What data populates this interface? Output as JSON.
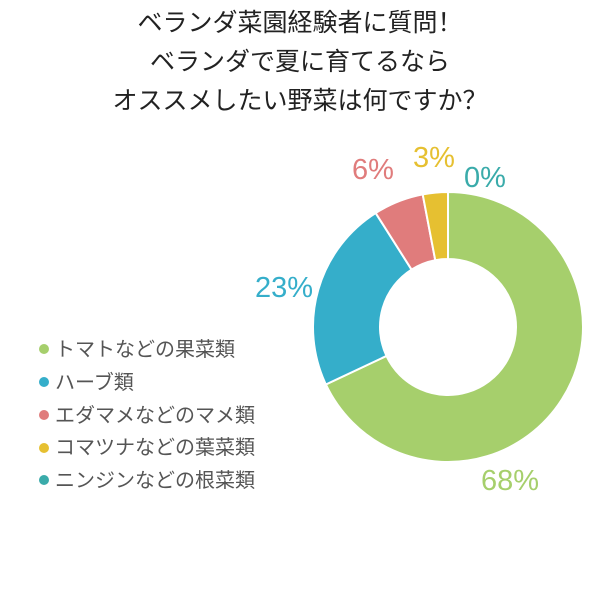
{
  "chart_data": {
    "type": "pie",
    "donut": true,
    "title": [
      "ベランダ菜園経験者に質問！",
      "ベランダで夏に育てるなら",
      "オススメしたい野菜は何ですか？"
    ],
    "categories": [
      "トマトなどの果菜類",
      "ハーブ類",
      "エダマメなどのマメ類",
      "コマツナなどの葉菜類",
      "ニンジンなどの根菜類"
    ],
    "values": [
      68,
      23,
      6,
      3,
      0
    ],
    "data_labels": [
      "68%",
      "23%",
      "6%",
      "3%",
      "0%"
    ],
    "colors": [
      "#a6cf6c",
      "#35aeca",
      "#e07c7c",
      "#e6c031",
      "#3aabaa"
    ],
    "legend_placement": "left",
    "start_angle": "top",
    "direction": "clockwise"
  }
}
